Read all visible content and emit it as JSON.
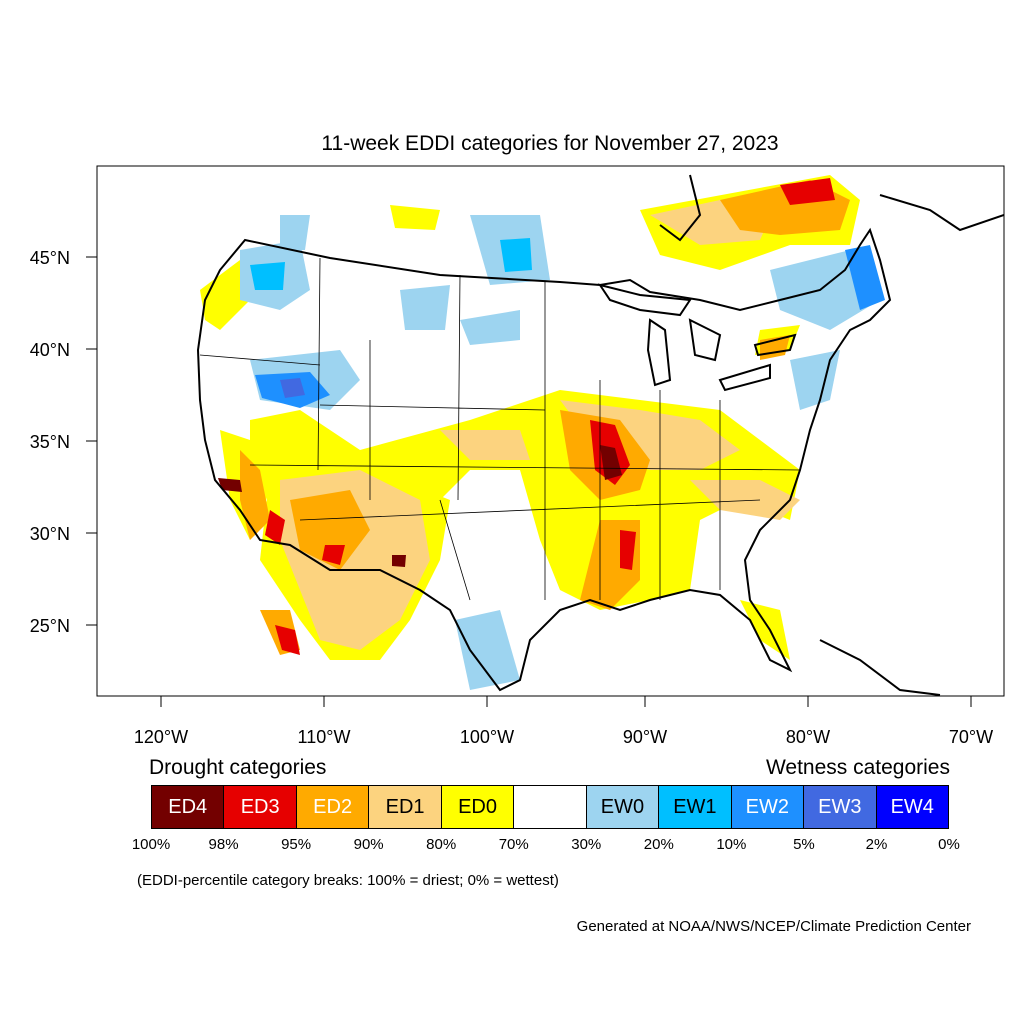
{
  "title": "11-week EDDI categories for November 27, 2023",
  "axes": {
    "lat_labels": [
      "45°N",
      "40°N",
      "35°N",
      "30°N",
      "25°N"
    ],
    "lon_labels": [
      "120°W",
      "110°W",
      "100°W",
      "90°W",
      "80°W",
      "70°W"
    ]
  },
  "legend": {
    "drought_heading": "Drought categories",
    "wetness_heading": "Wetness categories",
    "categories": [
      {
        "label": "ED4",
        "color": "#730000",
        "text_color": "#ffffff"
      },
      {
        "label": "ED3",
        "color": "#e60000",
        "text_color": "#ffffff"
      },
      {
        "label": "ED2",
        "color": "#ffaa00",
        "text_color": "#ffffff"
      },
      {
        "label": "ED1",
        "color": "#fcd37f",
        "text_color": "#000000"
      },
      {
        "label": "ED0",
        "color": "#ffff00",
        "text_color": "#000000"
      },
      {
        "label": "",
        "color": "#ffffff",
        "text_color": "#000000"
      },
      {
        "label": "EW0",
        "color": "#9dd4f0",
        "text_color": "#000000"
      },
      {
        "label": "EW1",
        "color": "#00bfff",
        "text_color": "#000000"
      },
      {
        "label": "EW2",
        "color": "#1e90ff",
        "text_color": "#ffffff"
      },
      {
        "label": "EW3",
        "color": "#4169e1",
        "text_color": "#ffffff"
      },
      {
        "label": "EW4",
        "color": "#0000ff",
        "text_color": "#ffffff"
      }
    ],
    "breaks": [
      "100%",
      "98%",
      "95%",
      "90%",
      "80%",
      "70%",
      "30%",
      "20%",
      "10%",
      "5%",
      "2%",
      "0%"
    ]
  },
  "note": "(EDDI-percentile category breaks: 100% = driest; 0% = wettest)",
  "credit": "Generated at NOAA/NWS/NCEP/Climate Prediction Center"
}
